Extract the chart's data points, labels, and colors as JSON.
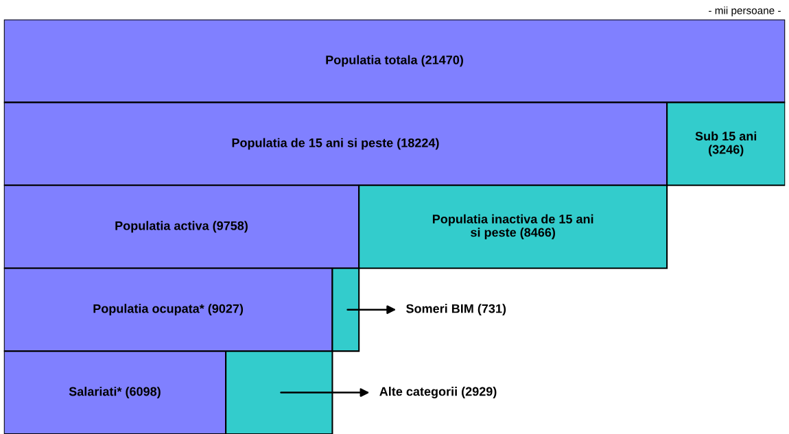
{
  "chart_data": {
    "type": "bar",
    "orientation": "horizontal",
    "stacked": true,
    "categories": [
      null,
      null,
      null,
      null,
      null
    ],
    "series": [
      {
        "color": "#8080ff",
        "values": [
          21470,
          18224,
          9758,
          9027,
          6098
        ],
        "value_labels": [
          "Populatia totala (21470)",
          "Populatia de 15 ani si peste (18224)",
          "Populatia activa (9758)",
          "Populatia ocupata* (9027)",
          "Salariati* (6098)"
        ]
      },
      {
        "color": "#33cccc",
        "values": [
          0,
          3246,
          8466,
          731,
          2929
        ],
        "value_labels": [
          null,
          "Sub 15 ani\n(3246)",
          "Populatia inactiva de 15 ani\nsi peste (8466)",
          "Someri BIM (731)",
          "Alte categorii (2929)"
        ]
      }
    ],
    "annotations": [
      "- mii persoane -"
    ],
    "tick_labels": false,
    "legend": false
  }
}
